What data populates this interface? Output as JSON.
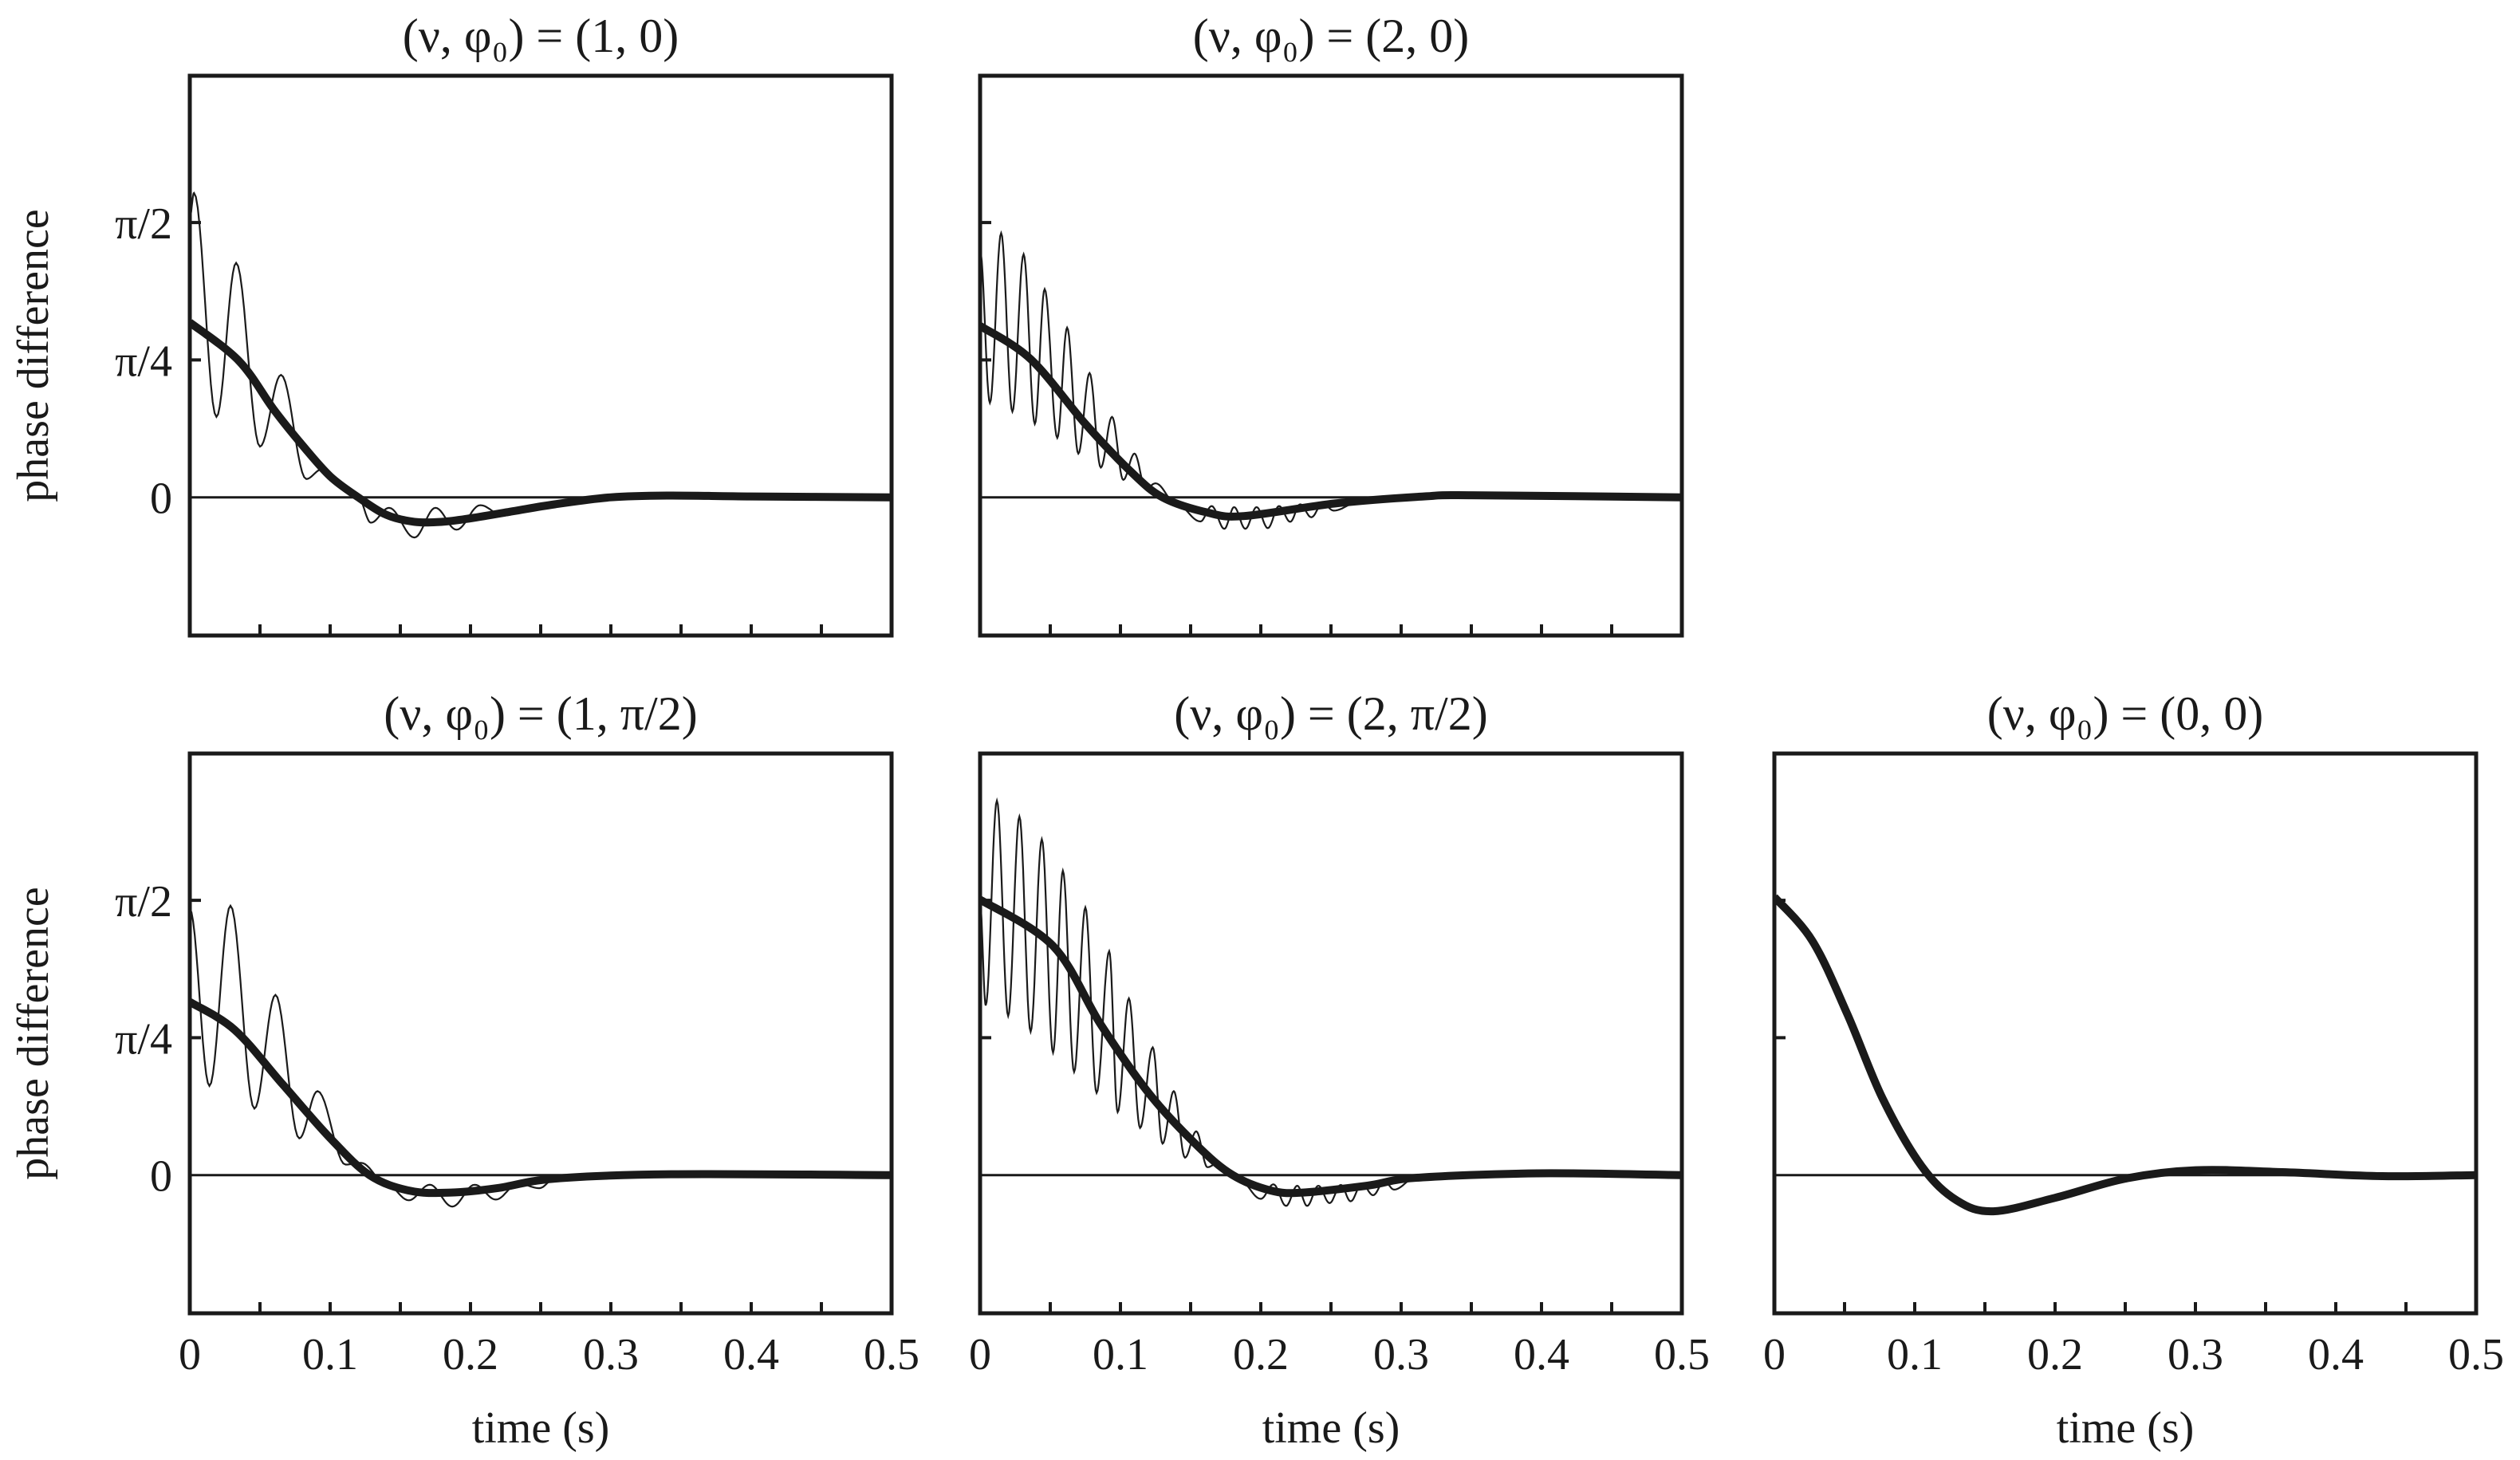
{
  "chart_data": {
    "type": "line",
    "layout": "2x3 grid, top-right slot empty",
    "xlabel": "time (s)",
    "ylabel": "phase difference",
    "xlim": [
      0,
      0.5
    ],
    "ylim": [
      -0.79,
      2.41
    ],
    "x_ticks": [
      0,
      0.1,
      0.2,
      0.3,
      0.4,
      0.5
    ],
    "x_tick_labels": [
      "0",
      "0.1",
      "0.2",
      "0.3",
      "0.4",
      "0.5"
    ],
    "x_minor_step": 0.05,
    "y_ticks": [
      0,
      0.7854,
      1.5708
    ],
    "y_tick_labels": [
      "0",
      "π/4",
      "π/2"
    ],
    "panels": [
      {
        "title": "(ν, φ₀) = (1, 0)",
        "smooth": [
          [
            0,
            1.0
          ],
          [
            0.035,
            0.78
          ],
          [
            0.06,
            0.5
          ],
          [
            0.08,
            0.3
          ],
          [
            0.1,
            0.12
          ],
          [
            0.12,
            0.0
          ],
          [
            0.14,
            -0.1
          ],
          [
            0.16,
            -0.14
          ],
          [
            0.18,
            -0.14
          ],
          [
            0.2,
            -0.12
          ],
          [
            0.23,
            -0.08
          ],
          [
            0.26,
            -0.04
          ],
          [
            0.3,
            0.0
          ],
          [
            0.34,
            0.01
          ],
          [
            0.4,
            0.005
          ],
          [
            0.5,
            0
          ]
        ],
        "oscillating": [
          [
            0,
            1.6
          ],
          [
            0.003,
            1.74
          ],
          [
            0.019,
            0.46
          ],
          [
            0.033,
            1.34
          ],
          [
            0.05,
            0.29
          ],
          [
            0.065,
            0.7
          ],
          [
            0.083,
            0.105
          ],
          [
            0.094,
            0.16
          ],
          [
            0.11,
            0.05
          ],
          [
            0.12,
            0.0
          ],
          [
            0.129,
            -0.145
          ],
          [
            0.142,
            -0.06
          ],
          [
            0.16,
            -0.23
          ],
          [
            0.175,
            -0.06
          ],
          [
            0.19,
            -0.185
          ],
          [
            0.207,
            -0.045
          ],
          [
            0.223,
            -0.105
          ],
          [
            0.25,
            -0.05
          ],
          [
            0.3,
            0.0
          ],
          [
            0.34,
            0.01
          ],
          [
            0.4,
            0.005
          ],
          [
            0.5,
            0
          ]
        ]
      },
      {
        "title": "(ν, φ₀) = (2, 0)",
        "smooth": [
          [
            0,
            0.98
          ],
          [
            0.036,
            0.79
          ],
          [
            0.075,
            0.42
          ],
          [
            0.107,
            0.15
          ],
          [
            0.13,
            0
          ],
          [
            0.162,
            -0.087
          ],
          [
            0.188,
            -0.107
          ],
          [
            0.253,
            -0.035
          ],
          [
            0.318,
            0.006
          ],
          [
            0.35,
            0.012
          ],
          [
            0.5,
            0
          ]
        ],
        "oscillating": [
          [
            0,
            1.41
          ],
          [
            0.007,
            0.54
          ],
          [
            0.015,
            1.51
          ],
          [
            0.023,
            0.49
          ],
          [
            0.031,
            1.39
          ],
          [
            0.039,
            0.42
          ],
          [
            0.046,
            1.19
          ],
          [
            0.055,
            0.34
          ],
          [
            0.062,
            0.97
          ],
          [
            0.07,
            0.25
          ],
          [
            0.078,
            0.71
          ],
          [
            0.086,
            0.17
          ],
          [
            0.094,
            0.46
          ],
          [
            0.102,
            0.1
          ],
          [
            0.11,
            0.25
          ],
          [
            0.118,
            0.05
          ],
          [
            0.125,
            0.08
          ],
          [
            0.14,
            -0.04
          ],
          [
            0.157,
            -0.138
          ],
          [
            0.165,
            -0.05
          ],
          [
            0.174,
            -0.18
          ],
          [
            0.181,
            -0.056
          ],
          [
            0.189,
            -0.18
          ],
          [
            0.197,
            -0.056
          ],
          [
            0.205,
            -0.176
          ],
          [
            0.213,
            -0.05
          ],
          [
            0.221,
            -0.14
          ],
          [
            0.228,
            -0.04
          ],
          [
            0.236,
            -0.114
          ],
          [
            0.244,
            -0.035
          ],
          [
            0.252,
            -0.076
          ],
          [
            0.27,
            -0.025
          ],
          [
            0.318,
            0.006
          ],
          [
            0.35,
            0.012
          ],
          [
            0.5,
            0
          ]
        ]
      },
      {
        "title": "(ν, φ₀) = (1, π/2)",
        "smooth": [
          [
            0,
            0.99
          ],
          [
            0.032,
            0.83
          ],
          [
            0.066,
            0.52
          ],
          [
            0.099,
            0.22
          ],
          [
            0.128,
            0
          ],
          [
            0.157,
            -0.09
          ],
          [
            0.186,
            -0.1
          ],
          [
            0.219,
            -0.075
          ],
          [
            0.26,
            -0.02
          ],
          [
            0.343,
            0.005
          ],
          [
            0.5,
            0
          ]
        ],
        "oscillating": [
          [
            0,
            1.52
          ],
          [
            0.014,
            0.51
          ],
          [
            0.029,
            1.54
          ],
          [
            0.046,
            0.38
          ],
          [
            0.061,
            1.03
          ],
          [
            0.078,
            0.21
          ],
          [
            0.091,
            0.48
          ],
          [
            0.111,
            0.06
          ],
          [
            0.122,
            0.07
          ],
          [
            0.14,
            -0.05
          ],
          [
            0.156,
            -0.144
          ],
          [
            0.171,
            -0.055
          ],
          [
            0.187,
            -0.18
          ],
          [
            0.203,
            -0.055
          ],
          [
            0.218,
            -0.14
          ],
          [
            0.234,
            -0.047
          ],
          [
            0.249,
            -0.075
          ],
          [
            0.26,
            -0.02
          ],
          [
            0.343,
            0.005
          ],
          [
            0.5,
            0
          ]
        ]
      },
      {
        "title": "(ν, φ₀) = (2, π/2)",
        "smooth": [
          [
            0,
            1.575
          ],
          [
            0.052,
            1.31
          ],
          [
            0.086,
            0.86
          ],
          [
            0.121,
            0.46
          ],
          [
            0.155,
            0.166
          ],
          [
            0.18,
            0
          ],
          [
            0.207,
            -0.088
          ],
          [
            0.23,
            -0.1
          ],
          [
            0.276,
            -0.06
          ],
          [
            0.31,
            -0.016
          ],
          [
            0.397,
            0.01
          ],
          [
            0.5,
            0
          ]
        ],
        "oscillating": [
          [
            0,
            1.55
          ],
          [
            0.004,
            0.97
          ],
          [
            0.012,
            2.14
          ],
          [
            0.02,
            0.91
          ],
          [
            0.028,
            2.05
          ],
          [
            0.036,
            0.82
          ],
          [
            0.044,
            1.92
          ],
          [
            0.052,
            0.7
          ],
          [
            0.059,
            1.74
          ],
          [
            0.067,
            0.59
          ],
          [
            0.075,
            1.53
          ],
          [
            0.083,
            0.47
          ],
          [
            0.092,
            1.28
          ],
          [
            0.098,
            0.36
          ],
          [
            0.106,
            1.01
          ],
          [
            0.114,
            0.27
          ],
          [
            0.123,
            0.73
          ],
          [
            0.13,
            0.18
          ],
          [
            0.138,
            0.48
          ],
          [
            0.146,
            0.1
          ],
          [
            0.154,
            0.25
          ],
          [
            0.162,
            0.045
          ],
          [
            0.169,
            0.067
          ],
          [
            0.185,
            -0.03
          ],
          [
            0.2,
            -0.136
          ],
          [
            0.209,
            -0.053
          ],
          [
            0.218,
            -0.176
          ],
          [
            0.226,
            -0.061
          ],
          [
            0.233,
            -0.176
          ],
          [
            0.241,
            -0.061
          ],
          [
            0.249,
            -0.16
          ],
          [
            0.257,
            -0.056
          ],
          [
            0.264,
            -0.15
          ],
          [
            0.272,
            -0.048
          ],
          [
            0.28,
            -0.115
          ],
          [
            0.288,
            -0.035
          ],
          [
            0.295,
            -0.083
          ],
          [
            0.31,
            -0.016
          ],
          [
            0.397,
            0.01
          ],
          [
            0.5,
            0
          ]
        ]
      },
      {
        "title": "(ν, φ₀) = (0, 0)",
        "smooth": [
          [
            0,
            1.59
          ],
          [
            0.027,
            1.34
          ],
          [
            0.052,
            0.92
          ],
          [
            0.077,
            0.44
          ],
          [
            0.105,
            0.05
          ],
          [
            0.13,
            -0.145
          ],
          [
            0.156,
            -0.207
          ],
          [
            0.2,
            -0.13
          ],
          [
            0.25,
            -0.02
          ],
          [
            0.3,
            0.028
          ],
          [
            0.362,
            0.017
          ],
          [
            0.433,
            -0.006
          ],
          [
            0.5,
            0
          ]
        ],
        "oscillating": []
      }
    ],
    "colors": {
      "line": "#1a1a1a",
      "frame": "#1a1a1a"
    }
  }
}
